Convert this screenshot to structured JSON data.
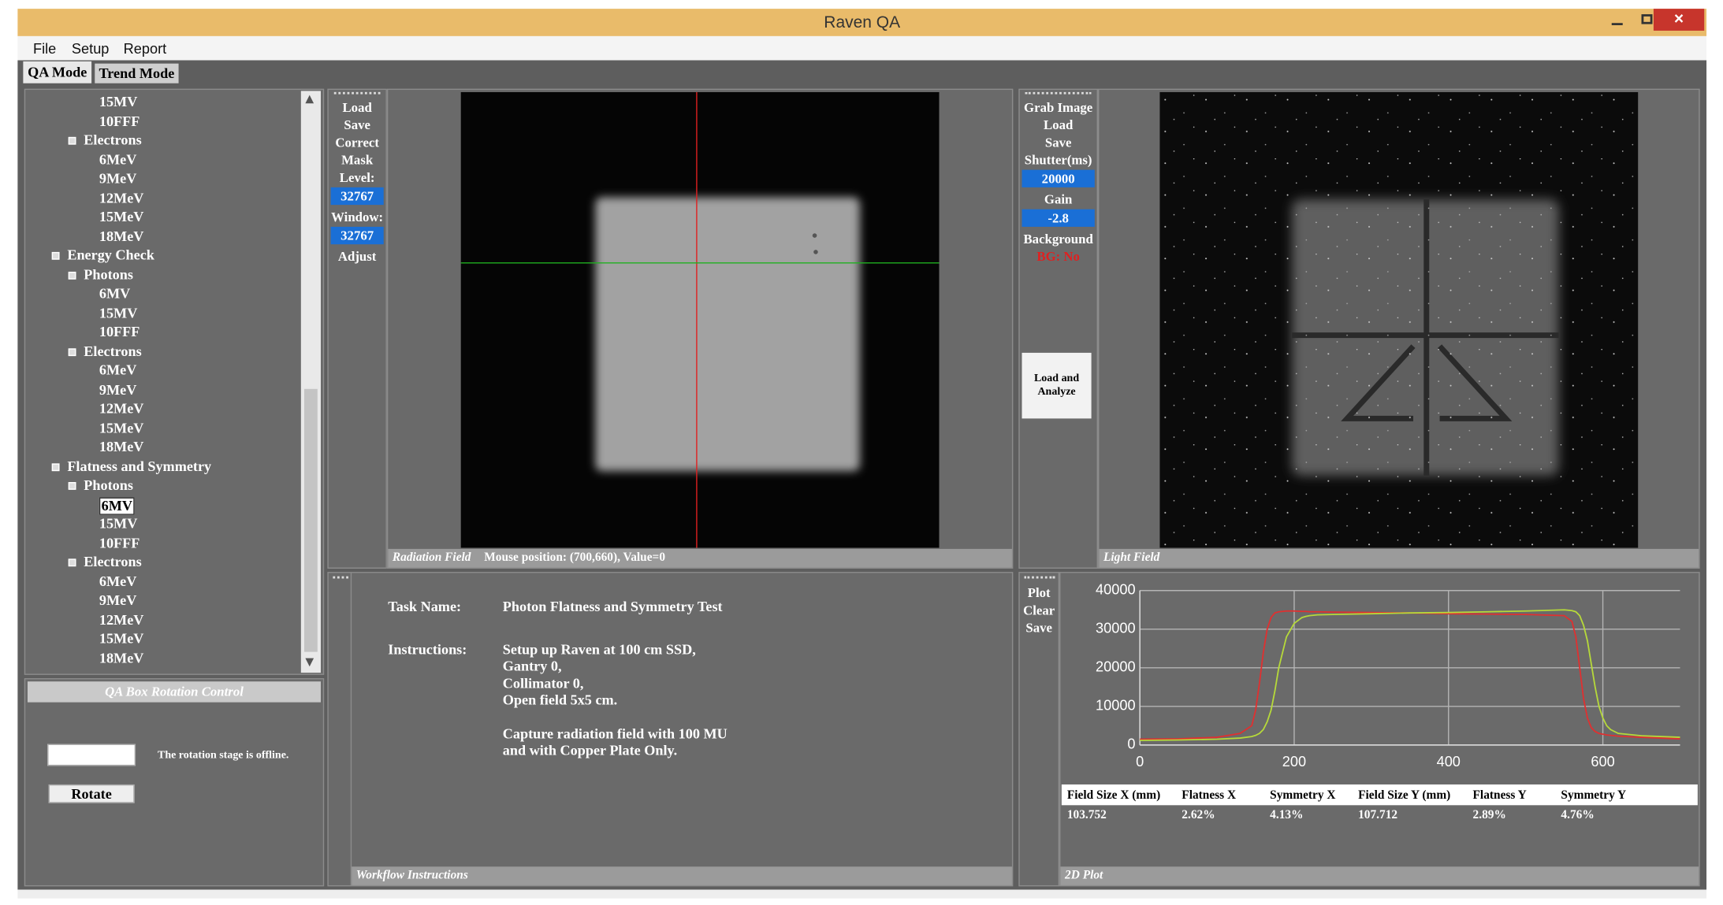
{
  "window": {
    "title": "Raven QA"
  },
  "menu": [
    "File",
    "Setup",
    "Report"
  ],
  "tabs": [
    "QA Mode",
    "Trend Mode"
  ],
  "tree": {
    "top_leaves": [
      "15MV",
      "10FFF"
    ],
    "top_subgroups": [
      {
        "label": "Electrons",
        "children": [
          "6MeV",
          "9MeV",
          "12MeV",
          "15MeV",
          "18MeV"
        ]
      }
    ],
    "groups": [
      {
        "label": "Energy Check",
        "subgroups": [
          {
            "label": "Photons",
            "children": [
              "6MV",
              "15MV",
              "10FFF"
            ]
          },
          {
            "label": "Electrons",
            "children": [
              "6MeV",
              "9MeV",
              "12MeV",
              "15MeV",
              "18MeV"
            ]
          }
        ]
      },
      {
        "label": "Flatness and Symmetry",
        "subgroups": [
          {
            "label": "Photons",
            "children": [
              "6MV",
              "15MV",
              "10FFF"
            ]
          },
          {
            "label": "Electrons",
            "children": [
              "6MeV",
              "9MeV",
              "12MeV",
              "15MeV",
              "18MeV"
            ]
          }
        ]
      }
    ]
  },
  "rotation": {
    "title": "QA Box Rotation Control",
    "status": "The rotation stage is offline.",
    "button": "Rotate"
  },
  "radiation_toolbar": {
    "buttons": [
      "Load",
      "Save",
      "Correct",
      "Mask"
    ],
    "level_label": "Level:",
    "level_value": "32767",
    "window_label": "Window:",
    "window_value": "32767",
    "adjust": "Adjust"
  },
  "radiation_panel": {
    "caption": "Radiation Field",
    "mouse": "Mouse position: (700,660), Value=0"
  },
  "light_toolbar": {
    "buttons": [
      "Grab Image",
      "Load",
      "Save"
    ],
    "shutter_label": "Shutter(ms)",
    "shutter_value": "20000",
    "gain_label": "Gain",
    "gain_value": "-2.8",
    "background_label": "Background",
    "background_status": "BG: No",
    "analyze": "Load and Analyze"
  },
  "light_panel": {
    "caption": "Light Field"
  },
  "workflow": {
    "task_label": "Task Name:",
    "task_name": "Photon Flatness and Symmetry Test",
    "instructions_label": "Instructions:",
    "instructions": [
      [
        "Setup up Raven at 100 cm SSD,",
        "Gantry 0,",
        "Collimator 0,",
        "Open field 5x5 cm."
      ],
      [
        "Capture radiation field with 100 MU",
        "and with Copper Plate Only."
      ]
    ],
    "caption": "Workflow Instructions"
  },
  "plot_toolbar": [
    "Plot",
    "Clear",
    "Save"
  ],
  "plot_panel": {
    "caption": "2D Plot"
  },
  "results": {
    "headers": [
      "Field Size X (mm)",
      "Flatness X",
      "Symmetry X",
      "Field Size Y (mm)",
      "Flatness Y",
      "Symmetry Y"
    ],
    "row": [
      "103.752",
      "2.62%",
      "4.13%",
      "107.712",
      "2.89%",
      "4.76%"
    ]
  },
  "chart_data": {
    "type": "line",
    "x": [
      0,
      50,
      100,
      130,
      145,
      150,
      155,
      160,
      165,
      170,
      175,
      180,
      190,
      200,
      210,
      215,
      220,
      230,
      250,
      300,
      350,
      400,
      450,
      500,
      550,
      560,
      565,
      570,
      575,
      580,
      585,
      590,
      595,
      600,
      605,
      610,
      620,
      650,
      700
    ],
    "series": [
      {
        "color": "#e03030",
        "values": [
          1500,
          1600,
          2000,
          3000,
          5000,
          9000,
          16000,
          24000,
          30000,
          33000,
          34200,
          34500,
          34700,
          34700,
          34600,
          34600,
          34500,
          34500,
          34400,
          34300,
          34200,
          34000,
          33900,
          33800,
          33500,
          32000,
          28000,
          20000,
          12000,
          7000,
          4500,
          3500,
          3000,
          2800,
          2600,
          2500,
          2300,
          2000,
          1600
        ]
      },
      {
        "color": "#b6d93a",
        "values": [
          1200,
          1300,
          1500,
          1800,
          2200,
          2500,
          3000,
          4000,
          6000,
          9000,
          14000,
          20000,
          28000,
          31500,
          33000,
          33300,
          33500,
          33700,
          33800,
          34000,
          34200,
          34300,
          34500,
          34700,
          35000,
          34800,
          34500,
          33500,
          31000,
          27000,
          21000,
          15000,
          10000,
          7000,
          5000,
          4000,
          3000,
          2400,
          2000
        ]
      }
    ],
    "xlim": [
      0,
      700
    ],
    "xticks": [
      0,
      200,
      400,
      600
    ],
    "ylim": [
      0,
      40000
    ],
    "yticks": [
      0,
      10000,
      20000,
      30000,
      40000
    ],
    "grid": true
  }
}
